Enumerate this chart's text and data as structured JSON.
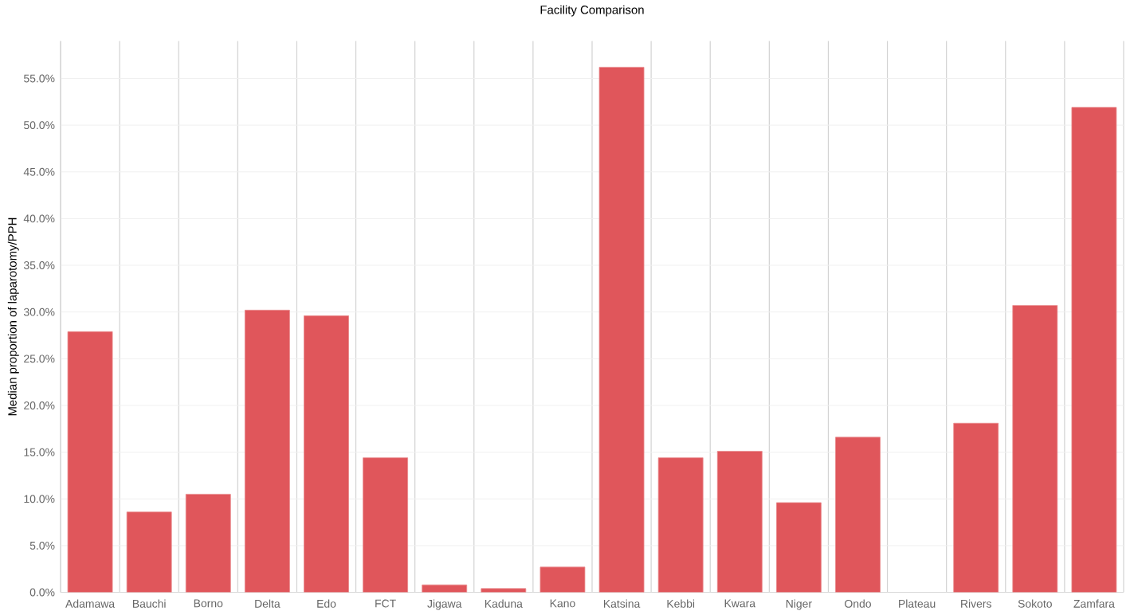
{
  "chart_data": {
    "type": "bar",
    "title": "Facility Comparison",
    "ylabel": "Median proportion of laparotomy/PPH",
    "categories": [
      "Adamawa",
      "Bauchi",
      "Borno",
      "Delta",
      "Edo",
      "FCT",
      "Jigawa",
      "Kaduna",
      "Kano",
      "Katsina",
      "Kebbi",
      "Kwara",
      "Niger",
      "Ondo",
      "Plateau",
      "Rivers",
      "Sokoto",
      "Zamfara"
    ],
    "values": [
      27.9,
      8.6,
      10.5,
      30.2,
      29.6,
      14.4,
      0.8,
      0.4,
      2.7,
      56.2,
      14.4,
      15.1,
      9.6,
      16.6,
      null,
      18.1,
      30.7,
      51.9
    ],
    "color": "#e0565b",
    "ylim": [
      0,
      59
    ],
    "yticks": [
      {
        "value": 0,
        "label": "0.0%"
      },
      {
        "value": 5,
        "label": "5.0%"
      },
      {
        "value": 10,
        "label": "10.0%"
      },
      {
        "value": 15,
        "label": "15.0%"
      },
      {
        "value": 20,
        "label": "20.0%"
      },
      {
        "value": 25,
        "label": "25.0%"
      },
      {
        "value": 30,
        "label": "30.0%"
      },
      {
        "value": 35,
        "label": "35.0%"
      },
      {
        "value": 40,
        "label": "40.0%"
      },
      {
        "value": 45,
        "label": "45.0%"
      },
      {
        "value": 50,
        "label": "50.0%"
      },
      {
        "value": 55,
        "label": "55.0%"
      }
    ],
    "grid": "y"
  }
}
